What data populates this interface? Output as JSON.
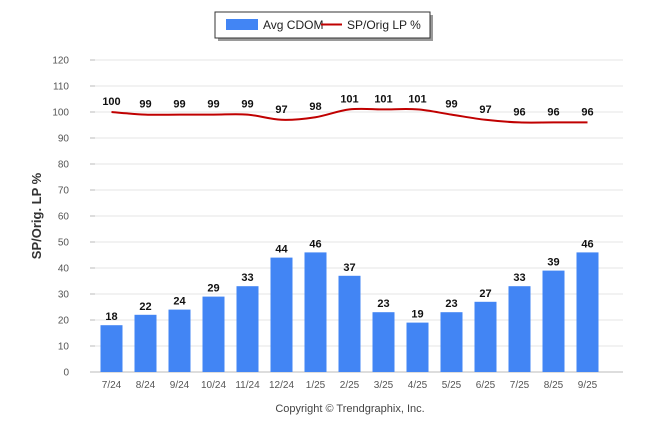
{
  "chart_data": {
    "type": "bar",
    "categories": [
      "7/24",
      "8/24",
      "9/24",
      "10/24",
      "11/24",
      "12/24",
      "1/25",
      "2/25",
      "3/25",
      "4/25",
      "5/25",
      "6/25",
      "7/25",
      "8/25",
      "9/25"
    ],
    "series": [
      {
        "name": "Avg CDOM",
        "type": "bar",
        "color": "#4285f4",
        "values": [
          18,
          22,
          24,
          29,
          33,
          44,
          46,
          37,
          23,
          19,
          23,
          27,
          33,
          39,
          46
        ]
      },
      {
        "name": "SP/Orig LP %",
        "type": "line",
        "color": "#c00000",
        "values": [
          100,
          99,
          99,
          99,
          99,
          97,
          98,
          101,
          101,
          101,
          99,
          97,
          96,
          96,
          96
        ]
      }
    ],
    "ylabel": "SP/Orig. LP %",
    "ylim": [
      0,
      120
    ],
    "yticks": [
      0,
      10,
      20,
      30,
      40,
      50,
      60,
      70,
      80,
      90,
      100,
      110,
      120
    ],
    "grid": true,
    "legend": "top-center"
  },
  "credit": "Copyright © Trendgraphix, Inc."
}
